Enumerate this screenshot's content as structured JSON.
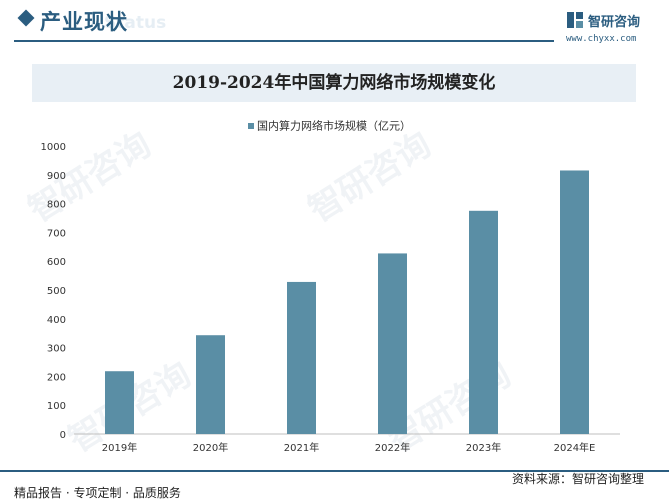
{
  "header": {
    "title": "产业现状",
    "bg_text": "Status"
  },
  "logo": {
    "name": "智研咨询",
    "url": "www.chyxx.com"
  },
  "watermark_text": "智研咨询",
  "chart_data": {
    "type": "bar",
    "title": "2019-2024年中国算力网络市场规模变化",
    "categories": [
      "2019年",
      "2020年",
      "2021年",
      "2022年",
      "2023年",
      "2024年E"
    ],
    "series": [
      {
        "name": "国内算力网络市场规模（亿元）",
        "values": [
          218,
          343,
          528,
          627,
          775,
          915
        ]
      }
    ],
    "ylim": [
      0,
      1000
    ],
    "yticks": [
      0,
      100,
      200,
      300,
      400,
      500,
      600,
      700,
      800,
      900,
      1000
    ],
    "legend": "top-center",
    "grid": false,
    "bar_color": "#5a8ea5"
  },
  "footer": {
    "left": "精品报告 · 专项定制 · 品质服务",
    "right": "资料来源：智研咨询整理"
  }
}
